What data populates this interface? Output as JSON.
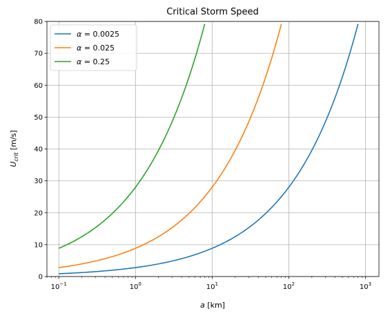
{
  "chart_data": {
    "type": "line",
    "title": "Critical Storm Speed",
    "xlabel": {
      "main": "a",
      "unit": " [km]"
    },
    "ylabel": {
      "main": "U",
      "sub": "crit",
      "unit": " [m/s]"
    },
    "xscale": "log",
    "xlim": [
      0.07,
      1500
    ],
    "ylim": [
      0,
      80
    ],
    "x_ticks": [
      {
        "value": 0.1,
        "base": "10",
        "exp": "−1"
      },
      {
        "value": 1,
        "base": "10",
        "exp": "0"
      },
      {
        "value": 10,
        "base": "10",
        "exp": "1"
      },
      {
        "value": 100,
        "base": "10",
        "exp": "2"
      },
      {
        "value": 1000,
        "base": "10",
        "exp": "3"
      }
    ],
    "y_ticks": [
      0,
      10,
      20,
      30,
      40,
      50,
      60,
      70,
      80
    ],
    "grid": true,
    "legend_position": "top-left",
    "series": [
      {
        "name": {
          "greek": "α",
          "eq": " = 0.0025"
        },
        "color": "#1f77b4",
        "x": [
          0.1,
          0.2,
          0.5,
          1,
          2,
          5,
          10,
          20,
          50,
          100,
          200,
          500,
          800
        ],
        "y": [
          0.88,
          1.25,
          1.98,
          2.8,
          3.96,
          6.26,
          8.85,
          12.5,
          19.8,
          28.0,
          39.6,
          62.6,
          79.2
        ]
      },
      {
        "name": {
          "greek": "α",
          "eq": " = 0.025"
        },
        "color": "#ff7f0e",
        "x": [
          0.1,
          0.2,
          0.5,
          1,
          2,
          5,
          10,
          20,
          50,
          80
        ],
        "y": [
          2.8,
          3.96,
          6.26,
          8.85,
          12.5,
          19.8,
          28.0,
          39.6,
          62.6,
          79.2
        ]
      },
      {
        "name": {
          "greek": "α",
          "eq": " = 0.25"
        },
        "color": "#2ca02c",
        "x": [
          0.1,
          0.2,
          0.5,
          1,
          2,
          5,
          8
        ],
        "y": [
          8.85,
          12.5,
          19.8,
          28.0,
          39.6,
          62.6,
          79.2
        ]
      }
    ]
  }
}
